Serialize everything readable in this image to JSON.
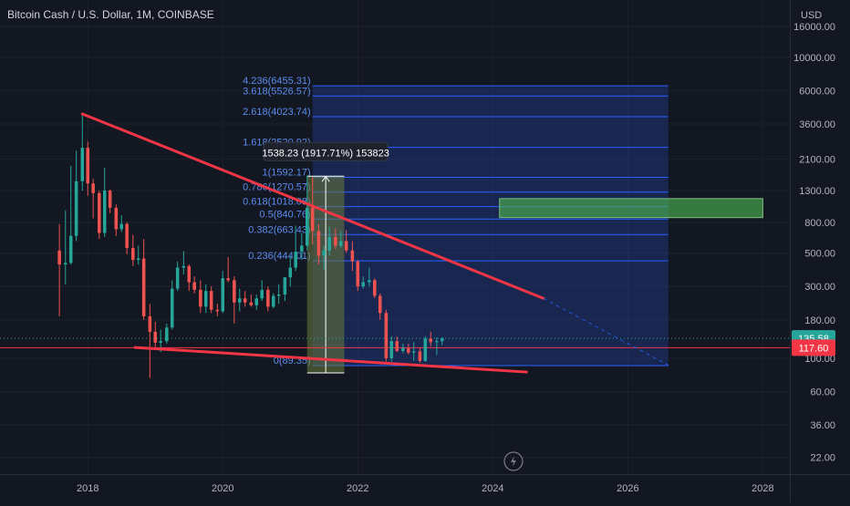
{
  "header": {
    "title": "Bitcoin Cash / U.S. Dollar, 1M, COINBASE"
  },
  "colors": {
    "background": "#131722",
    "grid": "#1e222d",
    "candle_up": "#26a69a",
    "candle_down": "#ef5350",
    "trendline": "#f23645",
    "fib_line": "#2962ff",
    "fib_fill": "#1e3a8a",
    "fib_text": "#5b8def",
    "target_zone": "#4caf50",
    "measure_zone": "#6b7a3a",
    "current_price_label": "#26a69a",
    "horizontal_line_label": "#f23645"
  },
  "chart_data": {
    "type": "candlestick",
    "symbol": "Bitcoin Cash / U.S. Dollar",
    "interval": "1M",
    "exchange": "COINBASE",
    "y_scale": "log",
    "ylim": [
      17,
      24000
    ],
    "xlim": [
      2016.7,
      2028.4
    ],
    "yaxis_unit": "USD",
    "yticks": [
      "16000.00",
      "10000.00",
      "6000.00",
      "3600.00",
      "2100.00",
      "1300.00",
      "800.00",
      "500.00",
      "300.00",
      "180.00",
      "100.00",
      "60.00",
      "36.00",
      "22.00"
    ],
    "ytick_values": [
      16000,
      10000,
      6000,
      3600,
      2100,
      1300,
      800,
      500,
      300,
      180,
      100,
      60,
      36,
      22
    ],
    "xticks": [
      "2018",
      "2020",
      "2022",
      "2024",
      "2026",
      "2028"
    ],
    "xtick_values": [
      2018,
      2020,
      2022,
      2024,
      2026,
      2028
    ],
    "candles": [
      {
        "t": 2017.58,
        "o": 520,
        "h": 780,
        "l": 190,
        "c": 420
      },
      {
        "t": 2017.67,
        "o": 420,
        "h": 960,
        "l": 310,
        "c": 430
      },
      {
        "t": 2017.75,
        "o": 430,
        "h": 1900,
        "l": 420,
        "c": 650
      },
      {
        "t": 2017.83,
        "o": 650,
        "h": 2400,
        "l": 600,
        "c": 1500
      },
      {
        "t": 2017.92,
        "o": 1500,
        "h": 4200,
        "l": 1300,
        "c": 2500
      },
      {
        "t": 2018.0,
        "o": 2500,
        "h": 2750,
        "l": 1200,
        "c": 1450
      },
      {
        "t": 2018.08,
        "o": 1450,
        "h": 1560,
        "l": 850,
        "c": 1250
      },
      {
        "t": 2018.17,
        "o": 1250,
        "h": 1300,
        "l": 620,
        "c": 680
      },
      {
        "t": 2018.25,
        "o": 680,
        "h": 1850,
        "l": 640,
        "c": 1300
      },
      {
        "t": 2018.33,
        "o": 1300,
        "h": 1320,
        "l": 920,
        "c": 1000
      },
      {
        "t": 2018.42,
        "o": 1000,
        "h": 1050,
        "l": 650,
        "c": 720
      },
      {
        "t": 2018.5,
        "o": 720,
        "h": 890,
        "l": 690,
        "c": 780
      },
      {
        "t": 2018.58,
        "o": 780,
        "h": 800,
        "l": 490,
        "c": 540
      },
      {
        "t": 2018.67,
        "o": 540,
        "h": 660,
        "l": 410,
        "c": 450
      },
      {
        "t": 2018.75,
        "o": 450,
        "h": 560,
        "l": 420,
        "c": 460
      },
      {
        "t": 2018.83,
        "o": 460,
        "h": 620,
        "l": 180,
        "c": 190
      },
      {
        "t": 2018.92,
        "o": 190,
        "h": 230,
        "l": 74,
        "c": 150
      },
      {
        "t": 2019.0,
        "o": 150,
        "h": 175,
        "l": 115,
        "c": 127
      },
      {
        "t": 2019.08,
        "o": 127,
        "h": 155,
        "l": 110,
        "c": 130
      },
      {
        "t": 2019.17,
        "o": 130,
        "h": 170,
        "l": 125,
        "c": 160
      },
      {
        "t": 2019.25,
        "o": 160,
        "h": 330,
        "l": 155,
        "c": 290
      },
      {
        "t": 2019.33,
        "o": 290,
        "h": 440,
        "l": 280,
        "c": 400
      },
      {
        "t": 2019.42,
        "o": 400,
        "h": 515,
        "l": 360,
        "c": 410
      },
      {
        "t": 2019.5,
        "o": 410,
        "h": 420,
        "l": 280,
        "c": 320
      },
      {
        "t": 2019.58,
        "o": 320,
        "h": 350,
        "l": 270,
        "c": 285
      },
      {
        "t": 2019.67,
        "o": 285,
        "h": 330,
        "l": 200,
        "c": 220
      },
      {
        "t": 2019.75,
        "o": 220,
        "h": 310,
        "l": 200,
        "c": 280
      },
      {
        "t": 2019.83,
        "o": 280,
        "h": 300,
        "l": 200,
        "c": 210
      },
      {
        "t": 2019.92,
        "o": 210,
        "h": 230,
        "l": 190,
        "c": 205
      },
      {
        "t": 2020.0,
        "o": 205,
        "h": 380,
        "l": 200,
        "c": 340
      },
      {
        "t": 2020.08,
        "o": 340,
        "h": 470,
        "l": 320,
        "c": 330
      },
      {
        "t": 2020.17,
        "o": 330,
        "h": 350,
        "l": 170,
        "c": 235
      },
      {
        "t": 2020.25,
        "o": 235,
        "h": 290,
        "l": 205,
        "c": 250
      },
      {
        "t": 2020.33,
        "o": 250,
        "h": 280,
        "l": 220,
        "c": 235
      },
      {
        "t": 2020.42,
        "o": 235,
        "h": 265,
        "l": 220,
        "c": 225
      },
      {
        "t": 2020.5,
        "o": 225,
        "h": 265,
        "l": 210,
        "c": 250
      },
      {
        "t": 2020.58,
        "o": 250,
        "h": 330,
        "l": 240,
        "c": 285
      },
      {
        "t": 2020.67,
        "o": 285,
        "h": 300,
        "l": 205,
        "c": 220
      },
      {
        "t": 2020.75,
        "o": 220,
        "h": 270,
        "l": 215,
        "c": 260
      },
      {
        "t": 2020.83,
        "o": 260,
        "h": 310,
        "l": 230,
        "c": 265
      },
      {
        "t": 2020.92,
        "o": 265,
        "h": 320,
        "l": 240,
        "c": 345
      },
      {
        "t": 2021.0,
        "o": 345,
        "h": 480,
        "l": 300,
        "c": 400
      },
      {
        "t": 2021.08,
        "o": 400,
        "h": 760,
        "l": 380,
        "c": 510
      },
      {
        "t": 2021.17,
        "o": 510,
        "h": 680,
        "l": 450,
        "c": 560
      },
      {
        "t": 2021.25,
        "o": 560,
        "h": 1640,
        "l": 520,
        "c": 1000
      },
      {
        "t": 2021.33,
        "o": 1000,
        "h": 1600,
        "l": 570,
        "c": 700
      },
      {
        "t": 2021.42,
        "o": 700,
        "h": 780,
        "l": 420,
        "c": 480
      },
      {
        "t": 2021.5,
        "o": 480,
        "h": 560,
        "l": 390,
        "c": 520
      },
      {
        "t": 2021.58,
        "o": 520,
        "h": 750,
        "l": 480,
        "c": 640
      },
      {
        "t": 2021.67,
        "o": 640,
        "h": 730,
        "l": 530,
        "c": 560
      },
      {
        "t": 2021.75,
        "o": 560,
        "h": 700,
        "l": 540,
        "c": 600
      },
      {
        "t": 2021.83,
        "o": 600,
        "h": 710,
        "l": 500,
        "c": 520
      },
      {
        "t": 2021.92,
        "o": 520,
        "h": 600,
        "l": 380,
        "c": 440
      },
      {
        "t": 2022.0,
        "o": 440,
        "h": 450,
        "l": 280,
        "c": 300
      },
      {
        "t": 2022.08,
        "o": 300,
        "h": 350,
        "l": 290,
        "c": 320
      },
      {
        "t": 2022.17,
        "o": 320,
        "h": 400,
        "l": 300,
        "c": 330
      },
      {
        "t": 2022.25,
        "o": 330,
        "h": 340,
        "l": 250,
        "c": 260
      },
      {
        "t": 2022.33,
        "o": 260,
        "h": 270,
        "l": 180,
        "c": 200
      },
      {
        "t": 2022.42,
        "o": 200,
        "h": 210,
        "l": 95,
        "c": 100
      },
      {
        "t": 2022.5,
        "o": 100,
        "h": 140,
        "l": 95,
        "c": 130
      },
      {
        "t": 2022.58,
        "o": 130,
        "h": 140,
        "l": 110,
        "c": 112
      },
      {
        "t": 2022.67,
        "o": 112,
        "h": 125,
        "l": 108,
        "c": 117
      },
      {
        "t": 2022.75,
        "o": 117,
        "h": 125,
        "l": 106,
        "c": 109
      },
      {
        "t": 2022.83,
        "o": 109,
        "h": 128,
        "l": 96,
        "c": 111
      },
      {
        "t": 2022.92,
        "o": 111,
        "h": 118,
        "l": 93,
        "c": 96
      },
      {
        "t": 2023.0,
        "o": 96,
        "h": 140,
        "l": 95,
        "c": 135
      },
      {
        "t": 2023.08,
        "o": 135,
        "h": 150,
        "l": 120,
        "c": 128
      },
      {
        "t": 2023.17,
        "o": 128,
        "h": 138,
        "l": 105,
        "c": 130
      },
      {
        "t": 2023.25,
        "o": 130,
        "h": 138,
        "l": 122,
        "c": 135.58
      }
    ],
    "fibonacci": {
      "start": {
        "t": 2021.33,
        "price": 89.35
      },
      "end_t": 2026.6,
      "levels": [
        {
          "label": "4.236(6455.31)",
          "price": 6455.31
        },
        {
          "label": "3.618(5526.57)",
          "price": 5526.57
        },
        {
          "label": "2.618(4023.74)",
          "price": 4023.74
        },
        {
          "label": "1.618(2520.92)",
          "price": 2520.92
        },
        {
          "label": "1(1592.17)",
          "price": 1592.17
        },
        {
          "label": "0.786(1270.57)",
          "price": 1270.57
        },
        {
          "label": "0.618(1018.08)",
          "price": 1018.08
        },
        {
          "label": "0.5(840.76)",
          "price": 840.76
        },
        {
          "label": "0.382(663.43)",
          "price": 663.43
        },
        {
          "label": "0.236(444.01)",
          "price": 444.01
        },
        {
          "label": "0(89.35)",
          "price": 89.35
        }
      ]
    },
    "trendlines": [
      {
        "name": "descending-resistance",
        "t1": 2017.92,
        "p1": 4200,
        "t2": 2024.75,
        "p2": 250,
        "style": "solid"
      },
      {
        "name": "resistance-extension",
        "t1": 2024.75,
        "p1": 250,
        "t2": 2026.6,
        "p2": 90,
        "style": "dashed"
      },
      {
        "name": "support-line",
        "t1": 2018.7,
        "p1": 118,
        "t2": 2024.5,
        "p2": 81,
        "style": "solid"
      }
    ],
    "horizontal_line": {
      "price": 117.6,
      "label": "117.60"
    },
    "current_price": {
      "price": 135.58,
      "label": "135.58"
    },
    "measure": {
      "t1": 2021.25,
      "t2": 2021.8,
      "low": 80,
      "high": 1620,
      "label": "1538.23 (1917.71%) 153823"
    },
    "target_zone": {
      "t1": 2024.1,
      "t2": 2028.0,
      "low": 860,
      "high": 1150
    },
    "xlabel": "",
    "ylabel": "USD"
  }
}
